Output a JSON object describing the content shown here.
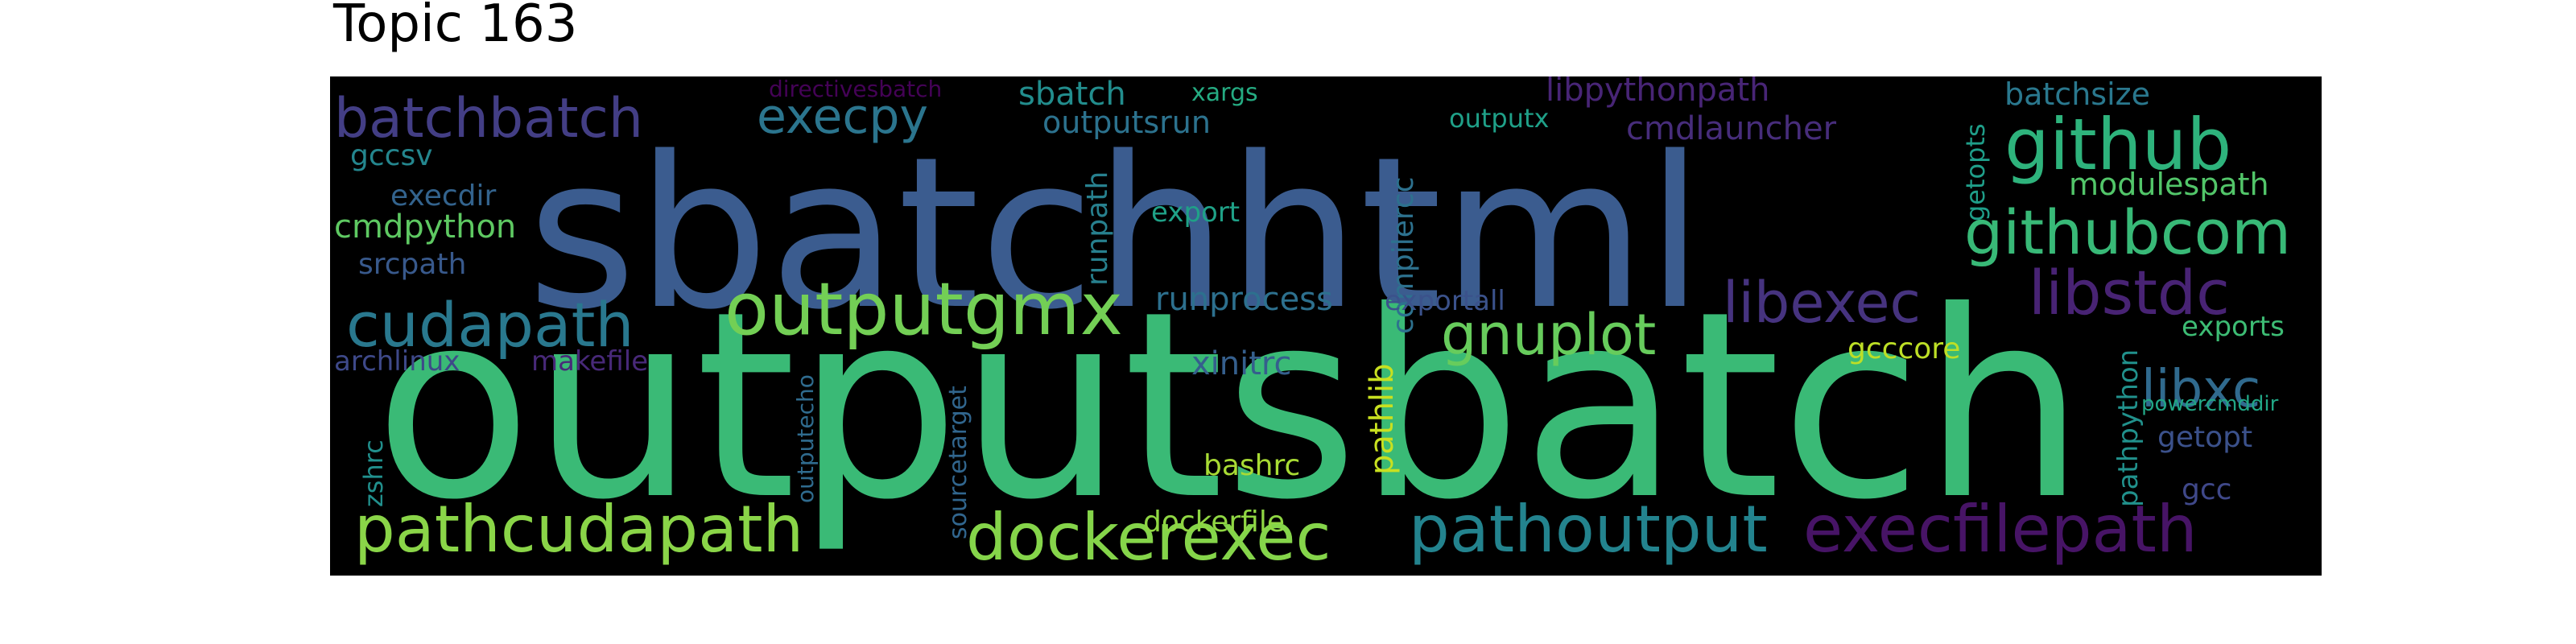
{
  "title": "Topic 163",
  "words": [
    {
      "text": "outputsbatch",
      "color": "#3aba76"
    },
    {
      "text": "sbatchhtml",
      "color": "#3b5c8f"
    },
    {
      "text": "outputgmx",
      "color": "#73cf55"
    },
    {
      "text": "dockerexec",
      "color": "#85d54a"
    },
    {
      "text": "pathcudapath",
      "color": "#8ad548"
    },
    {
      "text": "pathoutput",
      "color": "#23838e"
    },
    {
      "text": "execfilepath",
      "color": "#471466"
    },
    {
      "text": "github",
      "color": "#2eb37c"
    },
    {
      "text": "githubcom",
      "color": "#38b977"
    },
    {
      "text": "libstdc",
      "color": "#482374"
    },
    {
      "text": "libexec",
      "color": "#46337f"
    },
    {
      "text": "gnuplot",
      "color": "#67cc5c"
    },
    {
      "text": "cudapath",
      "color": "#29788e"
    },
    {
      "text": "batchbatch",
      "color": "#433e85"
    },
    {
      "text": "execpy",
      "color": "#2b758e"
    },
    {
      "text": "libxc",
      "color": "#306a8e"
    },
    {
      "text": "runprocess",
      "color": "#2d708e"
    },
    {
      "text": "xinitrc",
      "color": "#355f8d"
    },
    {
      "text": "bashrc",
      "color": "#a8db34"
    },
    {
      "text": "pathlib",
      "color": "#c8e020"
    },
    {
      "text": "dockerfile",
      "color": "#90d743"
    },
    {
      "text": "gcccore",
      "color": "#bddf26"
    },
    {
      "text": "exports",
      "color": "#3dbc74"
    },
    {
      "text": "getopt",
      "color": "#3b518b"
    },
    {
      "text": "gcc",
      "color": "#3f4889"
    },
    {
      "text": "powercmddir",
      "color": "#21a685"
    },
    {
      "text": "pathpython",
      "color": "#21918c"
    },
    {
      "text": "getopts",
      "color": "#1f9e89"
    },
    {
      "text": "batchsize",
      "color": "#2a788e"
    },
    {
      "text": "modulespath",
      "color": "#52c569"
    },
    {
      "text": "libpythonpath",
      "color": "#482576"
    },
    {
      "text": "cmdlauncher",
      "color": "#472d7b"
    },
    {
      "text": "outputx",
      "color": "#1fa088"
    },
    {
      "text": "outputsrun",
      "color": "#2c728e"
    },
    {
      "text": "sbatch",
      "color": "#228d8d"
    },
    {
      "text": "xargs",
      "color": "#25ab82"
    },
    {
      "text": "directivesbatch",
      "color": "#440256"
    },
    {
      "text": "compilercc",
      "color": "#2d718e"
    },
    {
      "text": "runpath",
      "color": "#27808e"
    },
    {
      "text": "export",
      "color": "#1fa187"
    },
    {
      "text": "exportall",
      "color": "#3b528b"
    },
    {
      "text": "gccsv",
      "color": "#24868e"
    },
    {
      "text": "execdir",
      "color": "#33638d"
    },
    {
      "text": "cmdpython",
      "color": "#5ec962"
    },
    {
      "text": "srcpath",
      "color": "#38598c"
    },
    {
      "text": "archlinux",
      "color": "#3e4989"
    },
    {
      "text": "makefile",
      "color": "#482979"
    },
    {
      "text": "zshrc",
      "color": "#21908d"
    },
    {
      "text": "outputecho",
      "color": "#2f6b8e"
    },
    {
      "text": "sourcetarget",
      "color": "#31668e"
    }
  ]
}
